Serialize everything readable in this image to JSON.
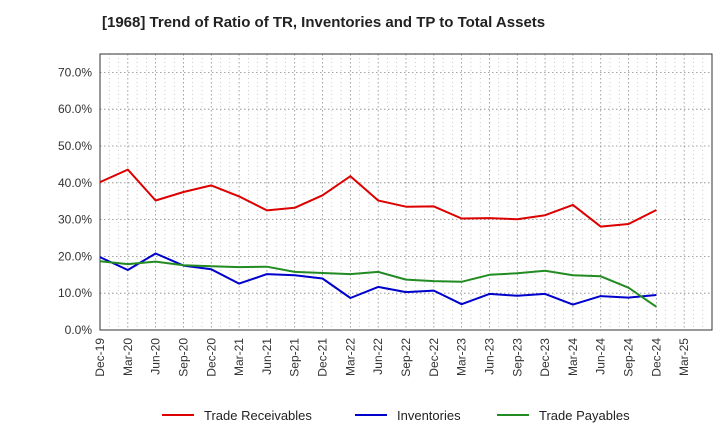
{
  "chart_data": {
    "type": "line",
    "title": "[1968]  Trend of Ratio of TR, Inventories and TP to Total Assets",
    "xlabel": "",
    "ylabel": "",
    "x": [
      "Dec-19",
      "Mar-20",
      "Jun-20",
      "Sep-20",
      "Dec-20",
      "Mar-21",
      "Jun-21",
      "Sep-21",
      "Dec-21",
      "Mar-22",
      "Jun-22",
      "Sep-22",
      "Dec-22",
      "Mar-23",
      "Jun-23",
      "Sep-23",
      "Dec-23",
      "Mar-24",
      "Jun-24",
      "Sep-24",
      "Dec-24",
      "Mar-25"
    ],
    "ylim": [
      0,
      75
    ],
    "yticks": [
      0,
      10,
      20,
      30,
      40,
      50,
      60,
      70
    ],
    "ytick_labels": [
      "0.0%",
      "10.0%",
      "20.0%",
      "30.0%",
      "40.0%",
      "50.0%",
      "60.0%",
      "70.0%"
    ],
    "grid": true,
    "legend_position": "bottom",
    "series": [
      {
        "name": "Trade Receivables",
        "color": "#dd0000",
        "values": [
          40.2,
          43.6,
          35.2,
          37.5,
          39.3,
          36.3,
          32.5,
          33.2,
          36.6,
          41.8,
          35.2,
          33.5,
          33.6,
          30.3,
          30.4,
          30.1,
          31.2,
          34.0,
          28.1,
          28.8,
          32.6,
          null
        ]
      },
      {
        "name": "Inventories",
        "color": "#0000cc",
        "values": [
          19.8,
          16.3,
          20.8,
          17.5,
          16.5,
          12.6,
          15.2,
          14.9,
          14.0,
          8.7,
          11.7,
          10.3,
          10.7,
          7.0,
          9.8,
          9.3,
          9.8,
          6.9,
          9.2,
          8.8,
          9.5,
          null
        ]
      },
      {
        "name": "Trade Payables",
        "color": "#228b22",
        "values": [
          18.7,
          17.9,
          18.6,
          17.6,
          17.3,
          17.1,
          17.2,
          15.8,
          15.5,
          15.2,
          15.8,
          13.7,
          13.3,
          13.1,
          15.0,
          15.4,
          16.1,
          14.9,
          14.6,
          11.5,
          6.3,
          null
        ]
      }
    ]
  }
}
